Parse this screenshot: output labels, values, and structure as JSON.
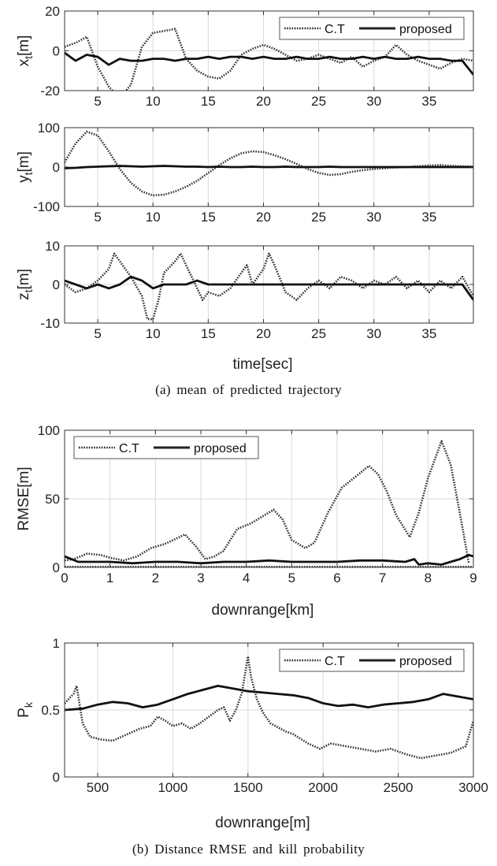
{
  "captions": {
    "a": "(a) mean of predicted trajectory",
    "b": "(b) Distance RMSE and kill probability"
  },
  "chart_data": [
    {
      "type": "line",
      "ylabel": "x_t[m]",
      "xlabel": "",
      "xlim": [
        2,
        39
      ],
      "ylim": [
        -20,
        20
      ],
      "xticks": [
        5,
        10,
        15,
        20,
        25,
        30,
        35
      ],
      "yticks": [
        -20,
        0,
        20
      ],
      "grid": true,
      "legend": "top-right",
      "series": [
        {
          "name": "C.T",
          "style": "dotted",
          "x": [
            2,
            3,
            4,
            5,
            6,
            7,
            8,
            9,
            10,
            11,
            12,
            13,
            14,
            15,
            16,
            17,
            18,
            19,
            20,
            21,
            22,
            23,
            24,
            25,
            26,
            27,
            28,
            29,
            30,
            31,
            32,
            33,
            34,
            35,
            36,
            37,
            38,
            39
          ],
          "y": [
            2,
            4,
            7,
            -8,
            -18,
            -24,
            -17,
            2,
            9,
            10,
            11,
            -4,
            -10,
            -13,
            -14,
            -10,
            -2,
            1,
            3,
            1,
            -2,
            -5,
            -4,
            -2,
            -4,
            -6,
            -3,
            -8,
            -5,
            -3,
            3,
            -2,
            -5,
            -7,
            -9,
            -6,
            -4,
            -5
          ]
        },
        {
          "name": "proposed",
          "style": "solid",
          "x": [
            2,
            3,
            4,
            5,
            6,
            7,
            8,
            9,
            10,
            11,
            12,
            13,
            14,
            15,
            16,
            17,
            18,
            19,
            20,
            21,
            22,
            23,
            24,
            25,
            26,
            27,
            28,
            29,
            30,
            31,
            32,
            33,
            34,
            35,
            36,
            37,
            38,
            39
          ],
          "y": [
            -1,
            -5,
            -2,
            -3,
            -7,
            -4,
            -5,
            -5,
            -4,
            -4,
            -5,
            -4,
            -4,
            -3,
            -4,
            -3,
            -3,
            -4,
            -3,
            -4,
            -4,
            -3,
            -4,
            -4,
            -3,
            -4,
            -4,
            -3,
            -4,
            -3,
            -4,
            -4,
            -3,
            -4,
            -4,
            -5,
            -5,
            -12
          ]
        }
      ]
    },
    {
      "type": "line",
      "ylabel": "y_t[m]",
      "xlabel": "",
      "xlim": [
        2,
        39
      ],
      "ylim": [
        -100,
        100
      ],
      "xticks": [
        5,
        10,
        15,
        20,
        25,
        30,
        35
      ],
      "yticks": [
        -100,
        0,
        100
      ],
      "grid": true,
      "series": [
        {
          "name": "C.T",
          "style": "dotted",
          "x": [
            2,
            3,
            4,
            5,
            6,
            7,
            8,
            9,
            10,
            11,
            12,
            13,
            14,
            15,
            16,
            17,
            18,
            19,
            20,
            21,
            22,
            23,
            24,
            25,
            26,
            27,
            28,
            29,
            30,
            31,
            32,
            33,
            34,
            35,
            36,
            37,
            38,
            39
          ],
          "y": [
            12,
            60,
            90,
            80,
            40,
            -5,
            -40,
            -62,
            -72,
            -70,
            -62,
            -50,
            -35,
            -15,
            5,
            22,
            35,
            40,
            38,
            30,
            20,
            8,
            -5,
            -15,
            -20,
            -18,
            -12,
            -8,
            -5,
            -3,
            -1,
            0,
            2,
            4,
            5,
            3,
            2,
            1
          ]
        },
        {
          "name": "proposed",
          "style": "solid",
          "x": [
            2,
            3,
            4,
            5,
            6,
            7,
            8,
            9,
            10,
            11,
            12,
            13,
            14,
            15,
            16,
            17,
            18,
            19,
            20,
            21,
            22,
            23,
            24,
            25,
            26,
            27,
            28,
            29,
            30,
            31,
            32,
            33,
            34,
            35,
            36,
            37,
            38,
            39
          ],
          "y": [
            -3,
            -2,
            0,
            1,
            2,
            3,
            2,
            1,
            2,
            3,
            2,
            1,
            1,
            0,
            1,
            0,
            0,
            1,
            0,
            0,
            1,
            0,
            0,
            0,
            1,
            0,
            0,
            0,
            0,
            0,
            0,
            0,
            0,
            0,
            0,
            0,
            0,
            0
          ]
        }
      ]
    },
    {
      "type": "line",
      "ylabel": "z_t[m]",
      "xlabel": "time[sec]",
      "xlim": [
        2,
        39
      ],
      "ylim": [
        -10,
        10
      ],
      "xticks": [
        5,
        10,
        15,
        20,
        25,
        30,
        35
      ],
      "yticks": [
        -10,
        0,
        10
      ],
      "grid": true,
      "series": [
        {
          "name": "C.T",
          "style": "dotted",
          "x": [
            2,
            3,
            4,
            5,
            6,
            6.5,
            7,
            8,
            9,
            9.5,
            10,
            10.5,
            11,
            12,
            12.5,
            13,
            14,
            14.5,
            15,
            16,
            17,
            18,
            18.5,
            19,
            20,
            20.5,
            21,
            22,
            23,
            24,
            25,
            26,
            27,
            28,
            29,
            30,
            31,
            32,
            33,
            34,
            35,
            36,
            37,
            38,
            39
          ],
          "y": [
            0,
            -2,
            -1,
            1,
            4,
            8,
            6,
            2,
            -3,
            -9,
            -9,
            -4,
            3,
            6,
            8,
            5,
            -1,
            -4,
            -2,
            -3,
            -1,
            3,
            5,
            0,
            4,
            8,
            5,
            -2,
            -4,
            -1,
            1,
            -1,
            2,
            1,
            -1,
            1,
            0,
            2,
            -1,
            1,
            -2,
            1,
            -1,
            2,
            -3
          ]
        },
        {
          "name": "proposed",
          "style": "solid",
          "x": [
            2,
            3,
            4,
            5,
            6,
            7,
            8,
            9,
            10,
            11,
            12,
            13,
            14,
            15,
            16,
            17,
            18,
            19,
            20,
            21,
            22,
            23,
            24,
            25,
            26,
            27,
            28,
            29,
            30,
            31,
            32,
            33,
            34,
            35,
            36,
            37,
            38,
            39
          ],
          "y": [
            1,
            0,
            -1,
            0,
            -1,
            0,
            2,
            1,
            -1,
            0,
            0,
            0,
            1,
            0,
            0,
            0,
            0,
            0,
            0,
            0,
            0,
            0,
            0,
            0,
            0,
            0,
            0,
            0,
            0,
            0,
            0,
            0,
            0,
            0,
            0,
            0,
            0,
            -4
          ]
        }
      ]
    },
    {
      "type": "line",
      "ylabel": "RMSE[m]",
      "xlabel": "downrange[km]",
      "xlim": [
        0,
        9
      ],
      "ylim": [
        0,
        100
      ],
      "xticks": [
        0,
        1,
        2,
        3,
        4,
        5,
        6,
        7,
        8,
        9
      ],
      "yticks": [
        0,
        50,
        100
      ],
      "grid": true,
      "legend": "top-left",
      "series": [
        {
          "name": "C.T",
          "style": "dotted",
          "x": [
            0,
            0.2,
            0.5,
            0.8,
            1.0,
            1.3,
            1.6,
            1.9,
            2.2,
            2.4,
            2.65,
            2.9,
            3.1,
            3.3,
            3.5,
            3.8,
            4.1,
            4.4,
            4.6,
            4.8,
            5.0,
            5.3,
            5.5,
            5.8,
            6.1,
            6.4,
            6.7,
            6.9,
            7.1,
            7.3,
            7.6,
            7.8,
            8.0,
            8.3,
            8.5,
            8.7,
            8.9
          ],
          "y": [
            5,
            6,
            10,
            9,
            7,
            5,
            8,
            14,
            17,
            20,
            24,
            15,
            6,
            8,
            12,
            28,
            32,
            38,
            42,
            35,
            20,
            14,
            18,
            40,
            58,
            66,
            74,
            68,
            55,
            38,
            22,
            40,
            65,
            92,
            75,
            40,
            3
          ]
        },
        {
          "name": "proposed",
          "style": "solid",
          "x": [
            0,
            0.3,
            1,
            1.5,
            2,
            2.5,
            3,
            3.5,
            4,
            4.5,
            5,
            5.5,
            6,
            6.5,
            7,
            7.5,
            7.7,
            7.8,
            8,
            8.3,
            8.5,
            8.7,
            8.9,
            9
          ],
          "y": [
            8,
            4,
            4,
            3,
            4,
            4,
            3,
            4,
            4,
            5,
            4,
            4,
            4,
            5,
            5,
            4,
            6,
            2,
            3,
            2,
            4,
            6,
            9,
            8
          ]
        },
        {
          "name": "",
          "style": "dotted-baseline",
          "x": [
            0,
            9
          ],
          "y": [
            0.5,
            0.5
          ]
        }
      ]
    },
    {
      "type": "line",
      "ylabel": "P_k",
      "xlabel": "downrange[m]",
      "xlim": [
        280,
        3000
      ],
      "ylim": [
        0,
        1
      ],
      "xticks": [
        500,
        1000,
        1500,
        2000,
        2500,
        3000
      ],
      "yticks": [
        0,
        0.5,
        1
      ],
      "grid": true,
      "legend": "top-right",
      "series": [
        {
          "name": "C.T",
          "style": "dotted",
          "x": [
            280,
            340,
            360,
            400,
            450,
            520,
            600,
            700,
            780,
            850,
            900,
            950,
            1000,
            1060,
            1120,
            1180,
            1240,
            1300,
            1340,
            1380,
            1420,
            1460,
            1500,
            1520,
            1560,
            1600,
            1650,
            1700,
            1750,
            1800,
            1900,
            1980,
            2050,
            2150,
            2250,
            2350,
            2450,
            2550,
            2650,
            2750,
            2850,
            2950,
            3000
          ],
          "y": [
            0.55,
            0.62,
            0.68,
            0.4,
            0.3,
            0.28,
            0.27,
            0.32,
            0.36,
            0.38,
            0.45,
            0.42,
            0.38,
            0.4,
            0.36,
            0.4,
            0.45,
            0.5,
            0.52,
            0.42,
            0.5,
            0.63,
            0.9,
            0.75,
            0.58,
            0.48,
            0.4,
            0.37,
            0.34,
            0.32,
            0.25,
            0.21,
            0.25,
            0.23,
            0.21,
            0.19,
            0.21,
            0.17,
            0.14,
            0.16,
            0.18,
            0.23,
            0.42
          ]
        },
        {
          "name": "proposed",
          "style": "solid",
          "x": [
            280,
            400,
            500,
            600,
            700,
            800,
            900,
            1000,
            1100,
            1200,
            1300,
            1400,
            1500,
            1600,
            1700,
            1800,
            1900,
            2000,
            2100,
            2200,
            2300,
            2400,
            2500,
            2600,
            2700,
            2800,
            2900,
            3000
          ],
          "y": [
            0.5,
            0.51,
            0.54,
            0.56,
            0.55,
            0.52,
            0.54,
            0.58,
            0.62,
            0.65,
            0.68,
            0.66,
            0.64,
            0.63,
            0.62,
            0.61,
            0.59,
            0.55,
            0.53,
            0.54,
            0.52,
            0.54,
            0.55,
            0.56,
            0.58,
            0.62,
            0.6,
            0.58
          ]
        }
      ]
    }
  ]
}
